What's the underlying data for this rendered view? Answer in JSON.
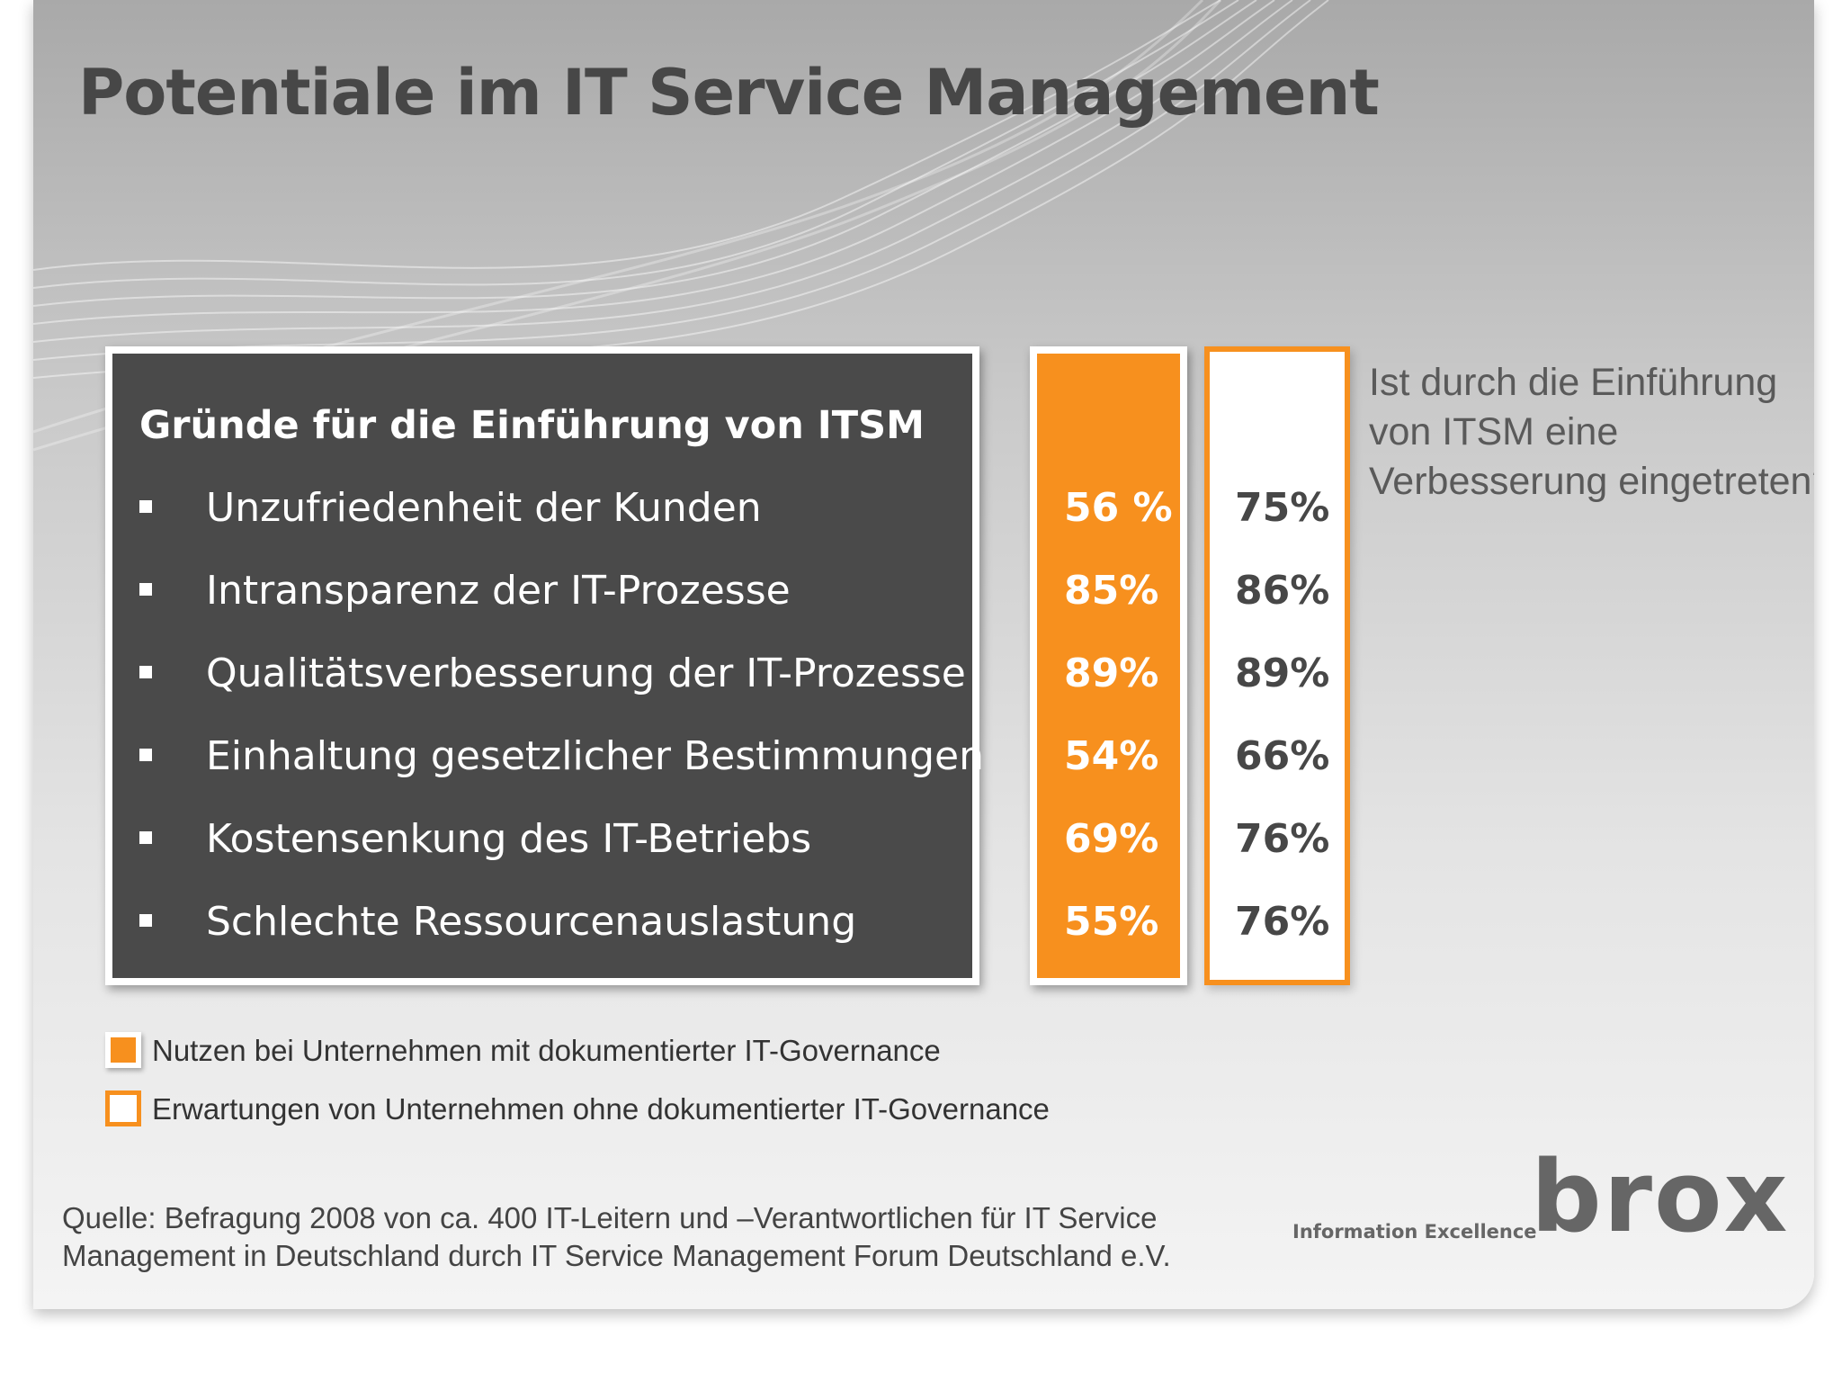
{
  "title": "Potentiale im IT Service Management",
  "box": {
    "heading": "Gründe für die Einführung von ITSM",
    "rows": [
      {
        "reason": "Unzufriedenheit der Kunden",
        "with_governance": "56 %",
        "without_governance": "75%"
      },
      {
        "reason": "Intransparenz der IT-Prozesse",
        "with_governance": "85%",
        "without_governance": "86%"
      },
      {
        "reason": "Qualitätsverbesserung der IT-Prozesse",
        "with_governance": "89%",
        "without_governance": "89%"
      },
      {
        "reason": "Einhaltung gesetzlicher Bestimmungen",
        "with_governance": "54%",
        "without_governance": "66%"
      },
      {
        "reason": "Kostensenkung des IT-Betriebs",
        "with_governance": "69%",
        "without_governance": "76%"
      },
      {
        "reason": "Schlechte Ressourcenauslastung",
        "with_governance": "55%",
        "without_governance": "76%"
      }
    ]
  },
  "question": "Ist durch die Einführung von ITSM eine Verbesserung eingetreten?",
  "legend": {
    "filled": "Nutzen bei Unternehmen mit dokumentierter IT-Governance",
    "outline": "Erwartungen von Unternehmen ohne dokumentierter IT-Governance"
  },
  "source": "Quelle: Befragung 2008 von ca. 400 IT-Leitern und –Verantwortlichen für IT Service Management in Deutschland durch IT Service Management Forum Deutschland e.V.",
  "logo": {
    "tagline": "Information Excellence",
    "word": "brox"
  },
  "colors": {
    "accent": "#f7901e",
    "dark_box": "#4a4a4a",
    "title": "#474747"
  }
}
